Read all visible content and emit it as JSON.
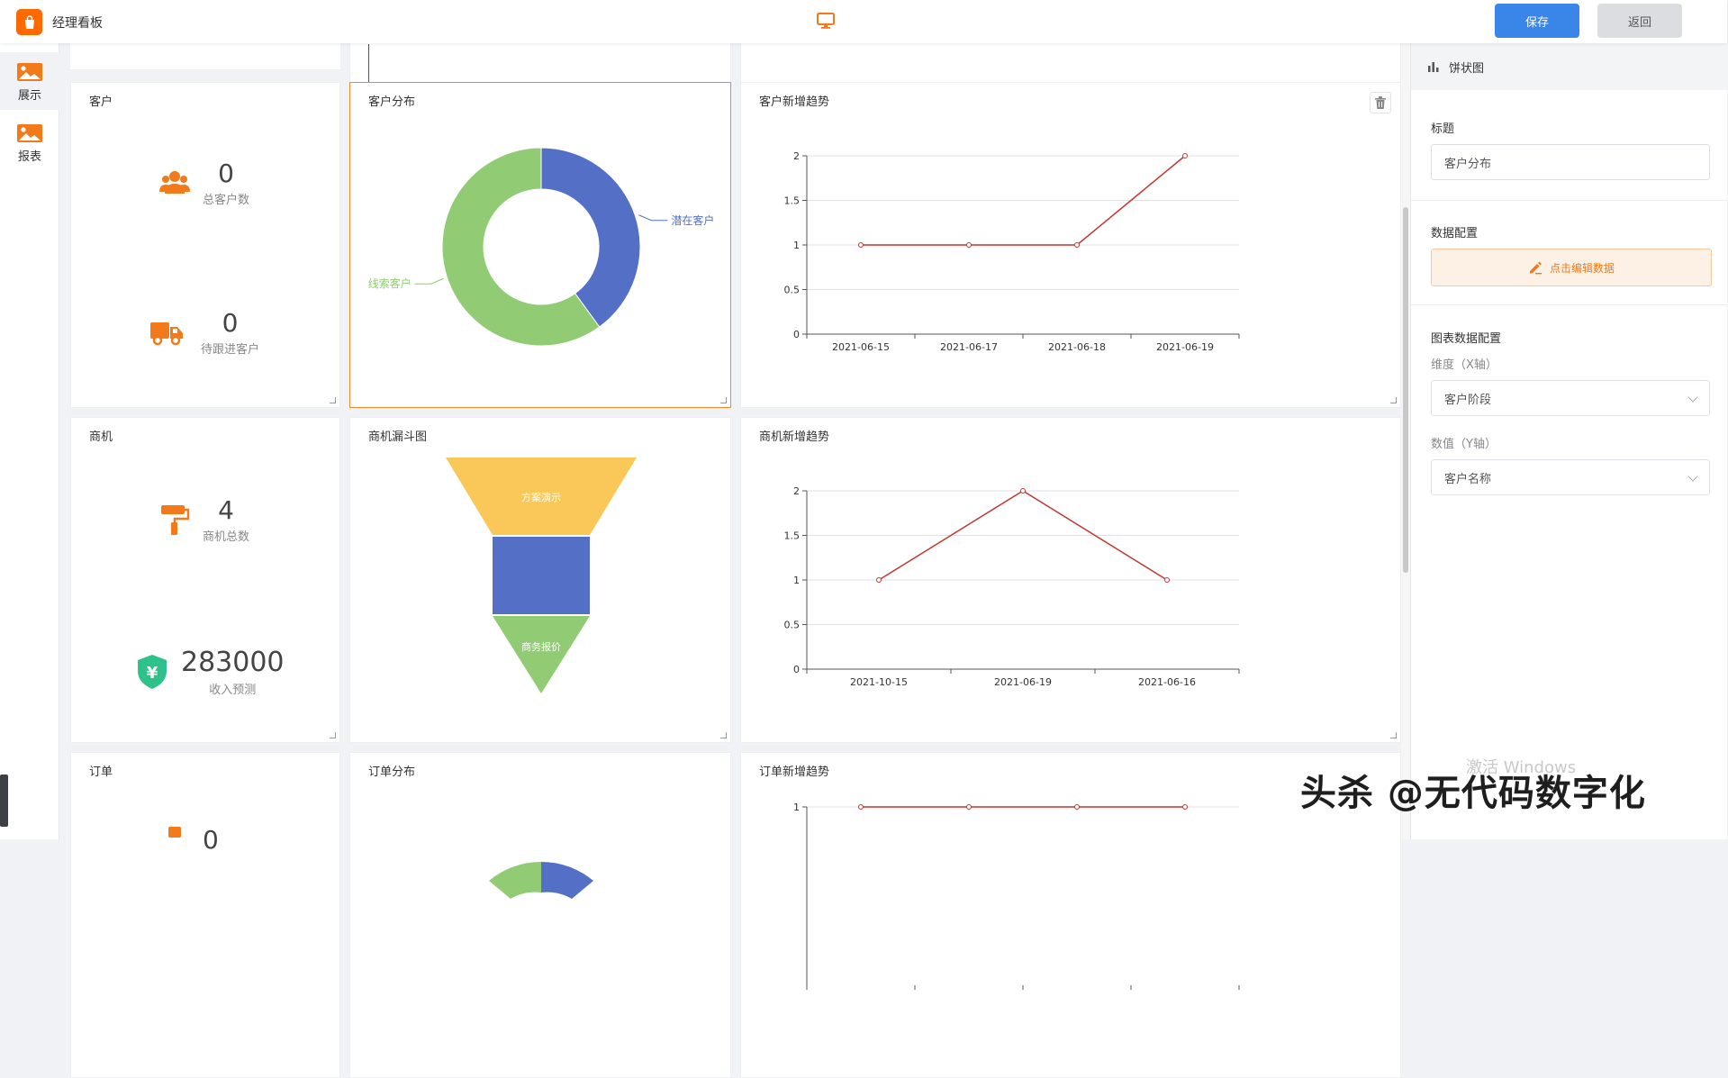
{
  "app": {
    "title": "经理看板"
  },
  "toolbar": {
    "save_label": "保存",
    "back_label": "返回"
  },
  "nav": {
    "items": [
      {
        "label": "展示",
        "icon": "image-icon",
        "active": true
      },
      {
        "label": "报表",
        "icon": "image-icon",
        "active": false
      }
    ]
  },
  "cards": {
    "customer": {
      "title": "客户",
      "stats": [
        {
          "value": "0",
          "label": "总客户数",
          "icon": "users-icon"
        },
        {
          "value": "0",
          "label": "待跟进客户",
          "icon": "truck-icon"
        }
      ]
    },
    "customer_dist": {
      "title": "客户分布"
    },
    "customer_trend": {
      "title": "客户新增趋势"
    },
    "opportunity": {
      "title": "商机",
      "stats": [
        {
          "value": "4",
          "label": "商机总数",
          "icon": "paint-roller-icon"
        },
        {
          "value": "283000",
          "label": "收入预测",
          "icon": "yen-shield-icon"
        }
      ]
    },
    "funnel": {
      "title": "商机漏斗图"
    },
    "opp_trend": {
      "title": "商机新增趋势"
    },
    "order": {
      "title": "订单",
      "stats": [
        {
          "value": "0"
        }
      ]
    },
    "order_dist": {
      "title": "订单分布"
    },
    "order_trend": {
      "title": "订单新增趋势"
    }
  },
  "chart_data": [
    {
      "type": "pie",
      "title": "客户分布",
      "donut": true,
      "slices": [
        {
          "label": "潜在客户",
          "value": 40,
          "color": "#5470c6"
        },
        {
          "label": "线索客户",
          "value": 60,
          "color": "#91cc75"
        }
      ]
    },
    {
      "type": "line",
      "title": "客户新增趋势",
      "categories": [
        "2021-06-15",
        "2021-06-17",
        "2021-06-18",
        "2021-06-19"
      ],
      "values": [
        1,
        1,
        1,
        2
      ],
      "ylim": [
        0,
        2
      ],
      "yticks": [
        "0",
        "0.5",
        "1",
        "1.5",
        "2"
      ],
      "color": "#c23531"
    },
    {
      "type": "funnel",
      "title": "商机漏斗图",
      "stages": [
        {
          "label": "方案演示",
          "color": "#fac858"
        },
        {
          "label": "",
          "color": "#5470c6"
        },
        {
          "label": "商务报价",
          "color": "#91cc75"
        }
      ]
    },
    {
      "type": "line",
      "title": "商机新增趋势",
      "categories": [
        "2021-10-15",
        "2021-06-19",
        "2021-06-16"
      ],
      "values": [
        1,
        2,
        1
      ],
      "ylim": [
        0,
        2
      ],
      "yticks": [
        "0",
        "0.5",
        "1",
        "1.5",
        "2"
      ],
      "color": "#c23531"
    },
    {
      "type": "line",
      "title": "订单新增趋势",
      "categories": [
        "",
        "",
        "",
        ""
      ],
      "values": [
        1,
        1,
        1,
        1
      ],
      "ylim": [
        0,
        1
      ],
      "yticks": [
        "1"
      ],
      "color": "#c23531"
    }
  ],
  "panel": {
    "header": "饼状图",
    "title_label": "标题",
    "title_value": "客户分布",
    "data_config_label": "数据配置",
    "edit_data_button": "点击编辑数据",
    "chart_data_config_label": "图表数据配置",
    "x_axis_label": "维度（X轴）",
    "x_axis_value": "客户阶段",
    "y_axis_label": "数值（Y轴）",
    "y_axis_value": "客户名称"
  },
  "watermarks": {
    "windows": "激活 Windows",
    "toutiao": "头杀 @无代码数字化"
  }
}
